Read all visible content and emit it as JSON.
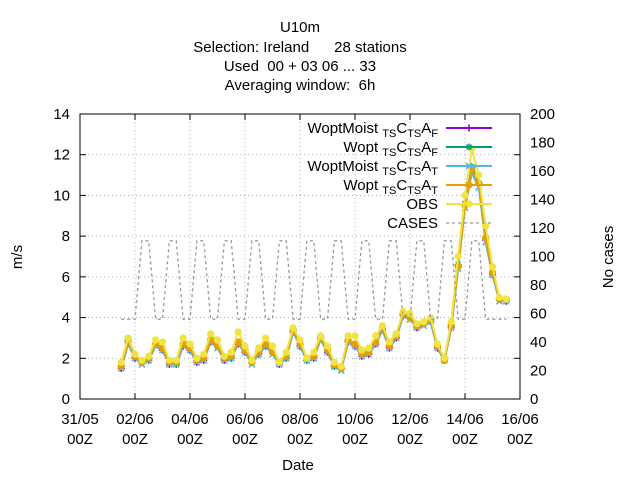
{
  "chart_data": {
    "type": "line",
    "title_lines": [
      "U10m",
      "Selection: Ireland      28 stations",
      "Used  00 + 03 06 ... 33",
      "Averaging window:  6h"
    ],
    "xlabel": "Date",
    "ylabel": "m/s",
    "y2label": "No cases",
    "ylim": [
      0,
      14
    ],
    "y2lim": [
      0,
      200
    ],
    "yticks": [
      0,
      2,
      4,
      6,
      8,
      10,
      12,
      14
    ],
    "y2ticks": [
      0,
      20,
      40,
      60,
      80,
      100,
      120,
      140,
      160,
      180,
      200
    ],
    "xlim": [
      0,
      16
    ],
    "xticks": [
      {
        "x": 0,
        "l1": "31/05",
        "l2": "00Z"
      },
      {
        "x": 2,
        "l1": "02/06",
        "l2": "00Z"
      },
      {
        "x": 4,
        "l1": "04/06",
        "l2": "00Z"
      },
      {
        "x": 6,
        "l1": "06/06",
        "l2": "00Z"
      },
      {
        "x": 8,
        "l1": "08/06",
        "l2": "00Z"
      },
      {
        "x": 10,
        "l1": "10/06",
        "l2": "00Z"
      },
      {
        "x": 12,
        "l1": "12/06",
        "l2": "00Z"
      },
      {
        "x": 14,
        "l1": "14/06",
        "l2": "00Z"
      },
      {
        "x": 16,
        "l1": "16/06",
        "l2": "00Z"
      }
    ],
    "grid": true,
    "legend_position": "top-right",
    "x": [
      1.5,
      1.75,
      2,
      2.25,
      2.5,
      2.75,
      3,
      3.25,
      3.5,
      3.75,
      4,
      4.25,
      4.5,
      4.75,
      5,
      5.25,
      5.5,
      5.75,
      6,
      6.25,
      6.5,
      6.75,
      7,
      7.25,
      7.5,
      7.75,
      8,
      8.25,
      8.5,
      8.75,
      9,
      9.25,
      9.5,
      9.75,
      10,
      10.25,
      10.5,
      10.75,
      11,
      11.25,
      11.5,
      11.75,
      12,
      12.25,
      12.5,
      12.75,
      13,
      13.25,
      13.5,
      13.75,
      14,
      14.25,
      14.5,
      14.75,
      15,
      15.25,
      15.5
    ],
    "series": [
      {
        "name": "WoptMoist TS CTS AF",
        "color": "#9400d3",
        "marker": "plus",
        "values": [
          1.5,
          2.8,
          2.0,
          1.8,
          1.9,
          2.7,
          2.4,
          1.7,
          1.7,
          2.6,
          2.4,
          1.8,
          1.9,
          2.8,
          2.6,
          1.9,
          2.0,
          2.7,
          2.3,
          1.8,
          2.2,
          2.6,
          2.3,
          1.7,
          2.0,
          3.3,
          2.6,
          1.9,
          2.0,
          3.0,
          2.3,
          1.6,
          1.5,
          2.8,
          2.6,
          2.1,
          2.2,
          2.7,
          3.4,
          2.5,
          3.0,
          4.1,
          4.0,
          3.5,
          3.7,
          3.8,
          2.5,
          1.9,
          3.5,
          6.5,
          9.5,
          11.2,
          10.5,
          7.8,
          6.1,
          4.9,
          4.8
        ]
      },
      {
        "name": "Wopt TS CTS AF",
        "color": "#009e73",
        "marker": "star",
        "values": [
          1.6,
          2.9,
          2.1,
          1.8,
          1.9,
          2.7,
          2.5,
          1.8,
          1.7,
          2.7,
          2.5,
          1.9,
          2.0,
          2.9,
          2.6,
          2.0,
          2.0,
          2.8,
          2.4,
          1.8,
          2.3,
          2.7,
          2.3,
          1.8,
          2.0,
          3.4,
          2.7,
          1.9,
          2.1,
          3.0,
          2.4,
          1.6,
          1.5,
          2.9,
          2.7,
          2.2,
          2.3,
          2.8,
          3.5,
          2.6,
          3.1,
          4.2,
          4.0,
          3.6,
          3.7,
          3.9,
          2.6,
          2.0,
          3.6,
          6.6,
          9.6,
          11.4,
          10.6,
          7.9,
          6.2,
          4.9,
          4.9
        ]
      },
      {
        "name": "WoptMoist TS CTS AT",
        "color": "#56b4e9",
        "marker": "x",
        "values": [
          1.5,
          2.7,
          2.0,
          1.7,
          1.9,
          2.6,
          2.4,
          1.7,
          1.7,
          2.6,
          2.4,
          1.8,
          1.9,
          2.8,
          2.5,
          1.9,
          2.0,
          2.7,
          2.3,
          1.7,
          2.2,
          2.6,
          2.2,
          1.7,
          2.0,
          3.3,
          2.6,
          1.9,
          2.0,
          2.9,
          2.3,
          1.6,
          1.4,
          2.8,
          2.6,
          2.1,
          2.2,
          2.7,
          3.4,
          2.5,
          3.0,
          4.1,
          3.9,
          3.5,
          3.6,
          3.8,
          2.5,
          1.9,
          3.5,
          6.4,
          9.4,
          11.1,
          10.4,
          7.7,
          6.1,
          4.8,
          4.8
        ]
      },
      {
        "name": "Wopt TS CTS AT",
        "color": "#e69f00",
        "marker": "circle",
        "values": [
          1.6,
          2.8,
          2.1,
          1.8,
          2.0,
          2.7,
          2.5,
          1.8,
          1.8,
          2.7,
          2.5,
          1.9,
          2.0,
          2.9,
          2.6,
          2.0,
          2.1,
          2.8,
          2.4,
          1.8,
          2.3,
          2.7,
          2.3,
          1.8,
          2.1,
          3.4,
          2.7,
          2.0,
          2.1,
          3.0,
          2.4,
          1.7,
          1.5,
          2.9,
          2.7,
          2.2,
          2.3,
          2.8,
          3.5,
          2.6,
          3.1,
          4.2,
          4.0,
          3.6,
          3.7,
          3.9,
          2.6,
          1.9,
          3.6,
          6.5,
          9.5,
          11.3,
          10.6,
          7.9,
          6.2,
          4.9,
          4.9
        ]
      },
      {
        "name": "OBS",
        "color": "#f0e442",
        "marker": "circle",
        "values": [
          1.8,
          3.0,
          2.2,
          1.9,
          2.1,
          2.9,
          2.8,
          1.9,
          1.9,
          3.0,
          2.7,
          2.0,
          2.2,
          3.2,
          2.9,
          2.1,
          2.3,
          3.3,
          2.6,
          1.9,
          2.5,
          3.0,
          2.6,
          1.8,
          2.3,
          3.5,
          2.9,
          2.0,
          2.3,
          3.1,
          2.6,
          1.8,
          1.6,
          3.1,
          3.1,
          2.4,
          2.5,
          3.1,
          3.6,
          2.8,
          3.2,
          4.3,
          4.2,
          3.7,
          3.8,
          4.0,
          2.7,
          2.0,
          3.8,
          7.0,
          10.0,
          12.3,
          11.0,
          8.5,
          6.5,
          5.0,
          4.9
        ]
      },
      {
        "name": "CASES",
        "color": "#999999",
        "marker": "none",
        "axis": "y2",
        "dashed": true,
        "values": [
          56,
          56,
          56,
          111,
          111,
          56,
          56,
          111,
          111,
          56,
          56,
          111,
          111,
          56,
          56,
          111,
          111,
          56,
          56,
          111,
          111,
          56,
          56,
          111,
          111,
          56,
          56,
          111,
          111,
          56,
          56,
          111,
          111,
          56,
          56,
          111,
          111,
          56,
          56,
          111,
          111,
          56,
          56,
          111,
          111,
          56,
          56,
          111,
          111,
          56,
          56,
          111,
          111,
          56,
          56,
          56,
          56
        ]
      }
    ],
    "legend": [
      {
        "main": "WoptMoist",
        "sub1": "TS",
        "c": "C",
        "sub2": "TS",
        "a": "A",
        "sub3": "F",
        "color": "#9400d3",
        "marker": "plus"
      },
      {
        "main": "Wopt",
        "sub1": "TS",
        "c": "C",
        "sub2": "TS",
        "a": "A",
        "sub3": "F",
        "color": "#009e73",
        "marker": "star"
      },
      {
        "main": "WoptMoist",
        "sub1": "TS",
        "c": "C",
        "sub2": "TS",
        "a": "A",
        "sub3": "T",
        "color": "#56b4e9",
        "marker": "x"
      },
      {
        "main": "Wopt",
        "sub1": "TS",
        "c": "C",
        "sub2": "TS",
        "a": "A",
        "sub3": "T",
        "color": "#e69f00",
        "marker": "circle"
      },
      {
        "main": "OBS",
        "color": "#f0e442",
        "marker": "circle"
      },
      {
        "main": "CASES",
        "color": "#999999",
        "marker": "none",
        "dashed": true
      }
    ]
  }
}
